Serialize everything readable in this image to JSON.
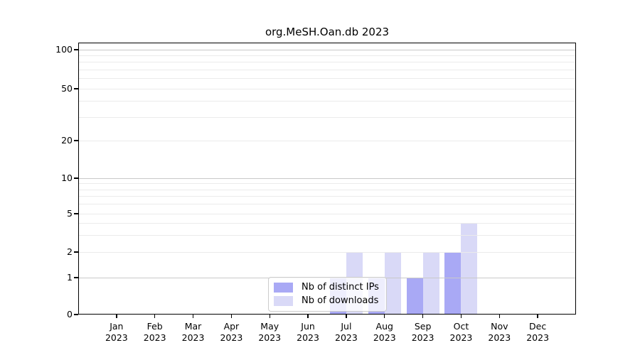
{
  "title": "org.MeSH.Oan.db 2023",
  "colors": {
    "ips_bar": "#a9a9f5",
    "downloads_bar": "#d9d9f7",
    "grid_decade": "#c9c9c9",
    "grid_light": "#ebebeb",
    "axis": "#000000",
    "legend_border": "#cccccc"
  },
  "x_axis": {
    "months": [
      "Jan",
      "Feb",
      "Mar",
      "Apr",
      "May",
      "Jun",
      "Jul",
      "Aug",
      "Sep",
      "Oct",
      "Nov",
      "Dec"
    ],
    "year": "2023"
  },
  "y_axis": {
    "tick_labels": [
      "0",
      "1",
      "2",
      "5",
      "10",
      "20",
      "50",
      "100"
    ]
  },
  "legend": {
    "items": [
      {
        "label": "Nb of distinct IPs",
        "color": "#a9a9f5"
      },
      {
        "label": "Nb of downloads",
        "color": "#d9d9f7"
      }
    ]
  },
  "chart_data": {
    "type": "bar",
    "title": "org.MeSH.Oan.db 2023",
    "categories": [
      "Jan 2023",
      "Feb 2023",
      "Mar 2023",
      "Apr 2023",
      "May 2023",
      "Jun 2023",
      "Jul 2023",
      "Aug 2023",
      "Sep 2023",
      "Oct 2023",
      "Nov 2023",
      "Dec 2023"
    ],
    "series": [
      {
        "name": "Nb of distinct IPs",
        "color": "#a9a9f5",
        "values": [
          0,
          0,
          0,
          0,
          0,
          0,
          1,
          1,
          1,
          2,
          0,
          0
        ]
      },
      {
        "name": "Nb of downloads",
        "color": "#d9d9f7",
        "values": [
          0,
          0,
          0,
          0,
          0,
          0,
          2,
          2,
          2,
          4,
          0,
          0
        ]
      }
    ],
    "xlabel": "",
    "ylabel": "",
    "yscale": "log-like (0 baseline with compressed log decades)",
    "ylim": [
      0,
      110
    ],
    "yticks_labeled": [
      0,
      1,
      2,
      5,
      10,
      20,
      50,
      100
    ],
    "yticks_minor_gridlines": [
      3,
      4,
      6,
      7,
      8,
      9,
      30,
      40,
      60,
      70,
      80,
      90
    ],
    "grid": "horizontal",
    "legend_position": "inside lower-center"
  }
}
